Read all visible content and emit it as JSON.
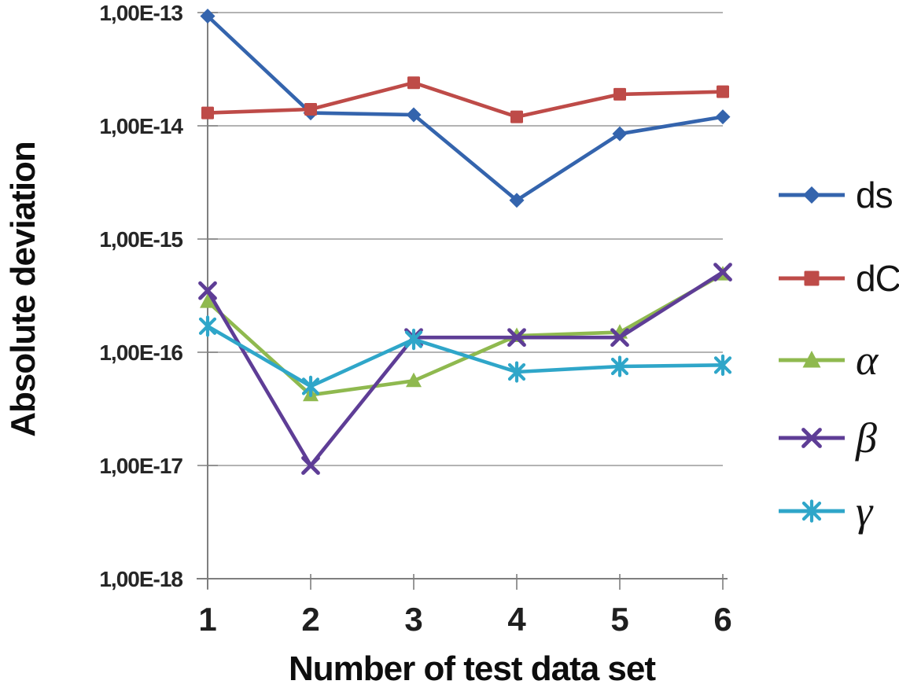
{
  "chart_data": {
    "type": "line",
    "title": "",
    "xlabel": "Number of test data set",
    "ylabel": "Absolute deviation",
    "x_axis": {
      "label": "Number of test data set",
      "categories": [
        "1",
        "2",
        "3",
        "4",
        "5",
        "6"
      ]
    },
    "y_axis": {
      "label": "Absolute deviation",
      "scale": "log",
      "min": 1e-18,
      "max": 1e-13,
      "tick_values": [
        1e-13,
        1e-14,
        1e-15,
        1e-16,
        1e-17,
        1e-18
      ],
      "tick_labels": [
        "1,00E-13",
        "1,00E-14",
        "1,00E-15",
        "1,00E-16",
        "1,00E-17",
        "1,00E-18"
      ]
    },
    "grid": "horizontal",
    "legend_position": "right",
    "series": [
      {
        "name": "ds",
        "marker": "diamond",
        "color": "#3464AD",
        "values": [
          9.3e-14,
          1.3e-14,
          1.25e-14,
          2.2e-15,
          8.5e-15,
          1.2e-14
        ]
      },
      {
        "name": "dC",
        "marker": "square",
        "color": "#BE4B48",
        "values": [
          1.3e-14,
          1.4e-14,
          2.4e-14,
          1.2e-14,
          1.9e-14,
          2e-14
        ]
      },
      {
        "name": "α",
        "marker": "triangle",
        "color": "#8FB94F",
        "values": [
          2.8e-16,
          4.2e-17,
          5.6e-17,
          1.4e-16,
          1.5e-16,
          4.9e-16
        ]
      },
      {
        "name": "β",
        "marker": "x",
        "color": "#5E3D96",
        "values": [
          3.5e-16,
          1e-17,
          1.35e-16,
          1.35e-16,
          1.35e-16,
          5.1e-16
        ]
      },
      {
        "name": "γ",
        "marker": "asterisk",
        "color": "#2FA6C9",
        "values": [
          1.7e-16,
          5e-17,
          1.3e-16,
          6.7e-17,
          7.5e-17,
          7.7e-17
        ]
      }
    ],
    "colors": {
      "gridline": "#9A9A9A",
      "axis": "#7F7F7F",
      "tick_text": "#262626",
      "title_text": "#0D0D0D"
    }
  }
}
